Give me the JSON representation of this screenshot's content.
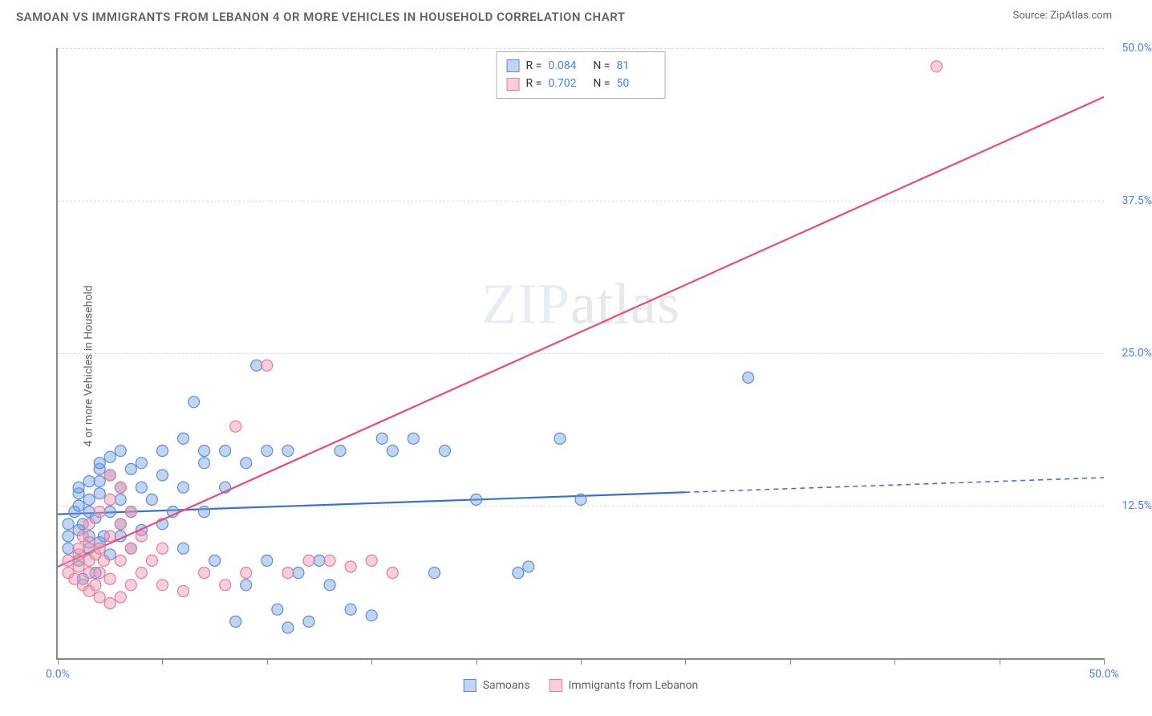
{
  "title": "SAMOAN VS IMMIGRANTS FROM LEBANON 4 OR MORE VEHICLES IN HOUSEHOLD CORRELATION CHART",
  "source_prefix": "Source: ",
  "source_name": "ZipAtlas.com",
  "ylabel": "4 or more Vehicles in Household",
  "watermark_1": "ZIP",
  "watermark_2": "atlas",
  "chart": {
    "type": "scatter-with-regression",
    "background_color": "#ffffff",
    "grid_color": "#dcdcdc",
    "axis_color": "#888888",
    "xlim": [
      0,
      50
    ],
    "ylim": [
      0,
      50
    ],
    "xticks": [
      0,
      5,
      10,
      15,
      20,
      25,
      30,
      35,
      40,
      45,
      50
    ],
    "yticks": [
      12.5,
      25.0,
      37.5,
      50.0
    ],
    "xtick_labels": {
      "0": "0.0%",
      "50": "50.0%"
    },
    "ytick_labels": [
      "12.5%",
      "25.0%",
      "37.5%",
      "50.0%"
    ],
    "marker_radius": 7,
    "marker_stroke_width": 1.2,
    "line_width": 2.2,
    "series": [
      {
        "name": "Samoans",
        "fill": "rgba(120,160,225,0.45)",
        "stroke": "#5a8fd6",
        "line_color": "#3a72c8",
        "r": 0.084,
        "n": 81,
        "regression": {
          "x1": 0,
          "y1": 11.8,
          "x2": 50,
          "y2": 14.8,
          "solid_until_x": 30
        },
        "points": [
          [
            0.5,
            9
          ],
          [
            0.5,
            10
          ],
          [
            0.5,
            11
          ],
          [
            0.8,
            12
          ],
          [
            1,
            8
          ],
          [
            1,
            10.5
          ],
          [
            1,
            12.5
          ],
          [
            1,
            13.5
          ],
          [
            1,
            14
          ],
          [
            1.2,
            6.5
          ],
          [
            1.2,
            11
          ],
          [
            1.5,
            9
          ],
          [
            1.5,
            10
          ],
          [
            1.5,
            12
          ],
          [
            1.5,
            13
          ],
          [
            1.5,
            14.5
          ],
          [
            1.8,
            7
          ],
          [
            1.8,
            11.5
          ],
          [
            2,
            9.5
          ],
          [
            2,
            13.5
          ],
          [
            2,
            14.5
          ],
          [
            2,
            15.5
          ],
          [
            2,
            16
          ],
          [
            2.2,
            10
          ],
          [
            2.5,
            8.5
          ],
          [
            2.5,
            12
          ],
          [
            2.5,
            15
          ],
          [
            2.5,
            16.5
          ],
          [
            3,
            10
          ],
          [
            3,
            11
          ],
          [
            3,
            13
          ],
          [
            3,
            14
          ],
          [
            3,
            17
          ],
          [
            3.5,
            9
          ],
          [
            3.5,
            12
          ],
          [
            3.5,
            15.5
          ],
          [
            4,
            10.5
          ],
          [
            4,
            14
          ],
          [
            4,
            16
          ],
          [
            4.5,
            13
          ],
          [
            5,
            11
          ],
          [
            5,
            15
          ],
          [
            5,
            17
          ],
          [
            5.5,
            12
          ],
          [
            6,
            9
          ],
          [
            6,
            14
          ],
          [
            6,
            18
          ],
          [
            6.5,
            21
          ],
          [
            7,
            12
          ],
          [
            7,
            16
          ],
          [
            7,
            17
          ],
          [
            7.5,
            8
          ],
          [
            8,
            14
          ],
          [
            8,
            17
          ],
          [
            8.5,
            3
          ],
          [
            9,
            6
          ],
          [
            9,
            16
          ],
          [
            9.5,
            24
          ],
          [
            10,
            8
          ],
          [
            10,
            17
          ],
          [
            10.5,
            4
          ],
          [
            11,
            2.5
          ],
          [
            11,
            17
          ],
          [
            11.5,
            7
          ],
          [
            12,
            3
          ],
          [
            12.5,
            8
          ],
          [
            13,
            6
          ],
          [
            13.5,
            17
          ],
          [
            14,
            4
          ],
          [
            15,
            3.5
          ],
          [
            15.5,
            18
          ],
          [
            16,
            17
          ],
          [
            17,
            18
          ],
          [
            18,
            7
          ],
          [
            18.5,
            17
          ],
          [
            20,
            13
          ],
          [
            22,
            7
          ],
          [
            22.5,
            7.5
          ],
          [
            24,
            18
          ],
          [
            25,
            13
          ],
          [
            33,
            23
          ]
        ]
      },
      {
        "name": "Immigrants from Lebanon",
        "fill": "rgba(240,150,175,0.45)",
        "stroke": "#e77a9a",
        "line_color": "#e94b7a",
        "r": 0.702,
        "n": 50,
        "regression": {
          "x1": 0,
          "y1": 7.5,
          "x2": 50,
          "y2": 46,
          "solid_until_x": 50
        },
        "points": [
          [
            0.5,
            7
          ],
          [
            0.5,
            8
          ],
          [
            0.8,
            6.5
          ],
          [
            1,
            7.5
          ],
          [
            1,
            8.5
          ],
          [
            1,
            9
          ],
          [
            1.2,
            6
          ],
          [
            1.2,
            10
          ],
          [
            1.5,
            5.5
          ],
          [
            1.5,
            7
          ],
          [
            1.5,
            8
          ],
          [
            1.5,
            9.5
          ],
          [
            1.5,
            11
          ],
          [
            1.8,
            6
          ],
          [
            1.8,
            8.5
          ],
          [
            2,
            5
          ],
          [
            2,
            7
          ],
          [
            2,
            9
          ],
          [
            2,
            12
          ],
          [
            2.2,
            8
          ],
          [
            2.5,
            4.5
          ],
          [
            2.5,
            6.5
          ],
          [
            2.5,
            10
          ],
          [
            2.5,
            13
          ],
          [
            2.5,
            15
          ],
          [
            3,
            5
          ],
          [
            3,
            8
          ],
          [
            3,
            11
          ],
          [
            3,
            14
          ],
          [
            3.5,
            6
          ],
          [
            3.5,
            9
          ],
          [
            3.5,
            12
          ],
          [
            4,
            7
          ],
          [
            4,
            10
          ],
          [
            4.5,
            8
          ],
          [
            5,
            6
          ],
          [
            5,
            9
          ],
          [
            6,
            5.5
          ],
          [
            7,
            7
          ],
          [
            8,
            6
          ],
          [
            8.5,
            19
          ],
          [
            9,
            7
          ],
          [
            10,
            24
          ],
          [
            11,
            7
          ],
          [
            12,
            8
          ],
          [
            13,
            8
          ],
          [
            14,
            7.5
          ],
          [
            15,
            8
          ],
          [
            16,
            7
          ],
          [
            42,
            48.5
          ]
        ]
      }
    ]
  },
  "stats_legend": {
    "r_label": "R =",
    "n_label": "N ="
  },
  "bottom_legend": {
    "items": [
      "Samoans",
      "Immigrants from Lebanon"
    ]
  }
}
